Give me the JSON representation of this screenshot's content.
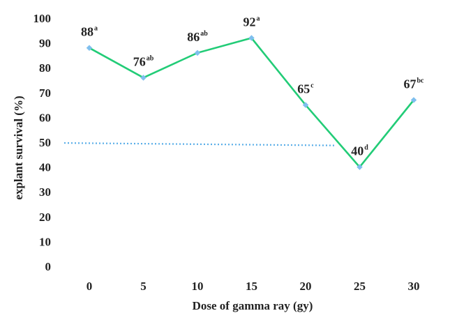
{
  "chart_data": {
    "type": "line",
    "xlabel": "Dose of gamma ray (gy)",
    "ylabel": "explant  survival  (%)",
    "categories": [
      "0",
      "5",
      "10",
      "15",
      "20",
      "25",
      "30"
    ],
    "ylim": [
      0,
      100
    ],
    "yticks": [
      "0",
      "10",
      "20",
      "30",
      "40",
      "50",
      "60",
      "70",
      "80",
      "90",
      "100"
    ],
    "grid": false,
    "series": [
      {
        "values": [
          88,
          76,
          86,
          92,
          65,
          40,
          67
        ],
        "labels": [
          "88",
          "76",
          "86",
          "92",
          "65",
          "40",
          "67"
        ],
        "superscripts": [
          "a",
          "ab",
          "ab",
          "a",
          "c",
          "d",
          "bc"
        ],
        "line_color": "#22cc77",
        "marker_color": "#7fbfee"
      }
    ],
    "reference_line": {
      "x": [
        "0",
        "25"
      ],
      "y": [
        49.7,
        48.7
      ],
      "style": "dotted",
      "color": "#5aaee8"
    }
  }
}
